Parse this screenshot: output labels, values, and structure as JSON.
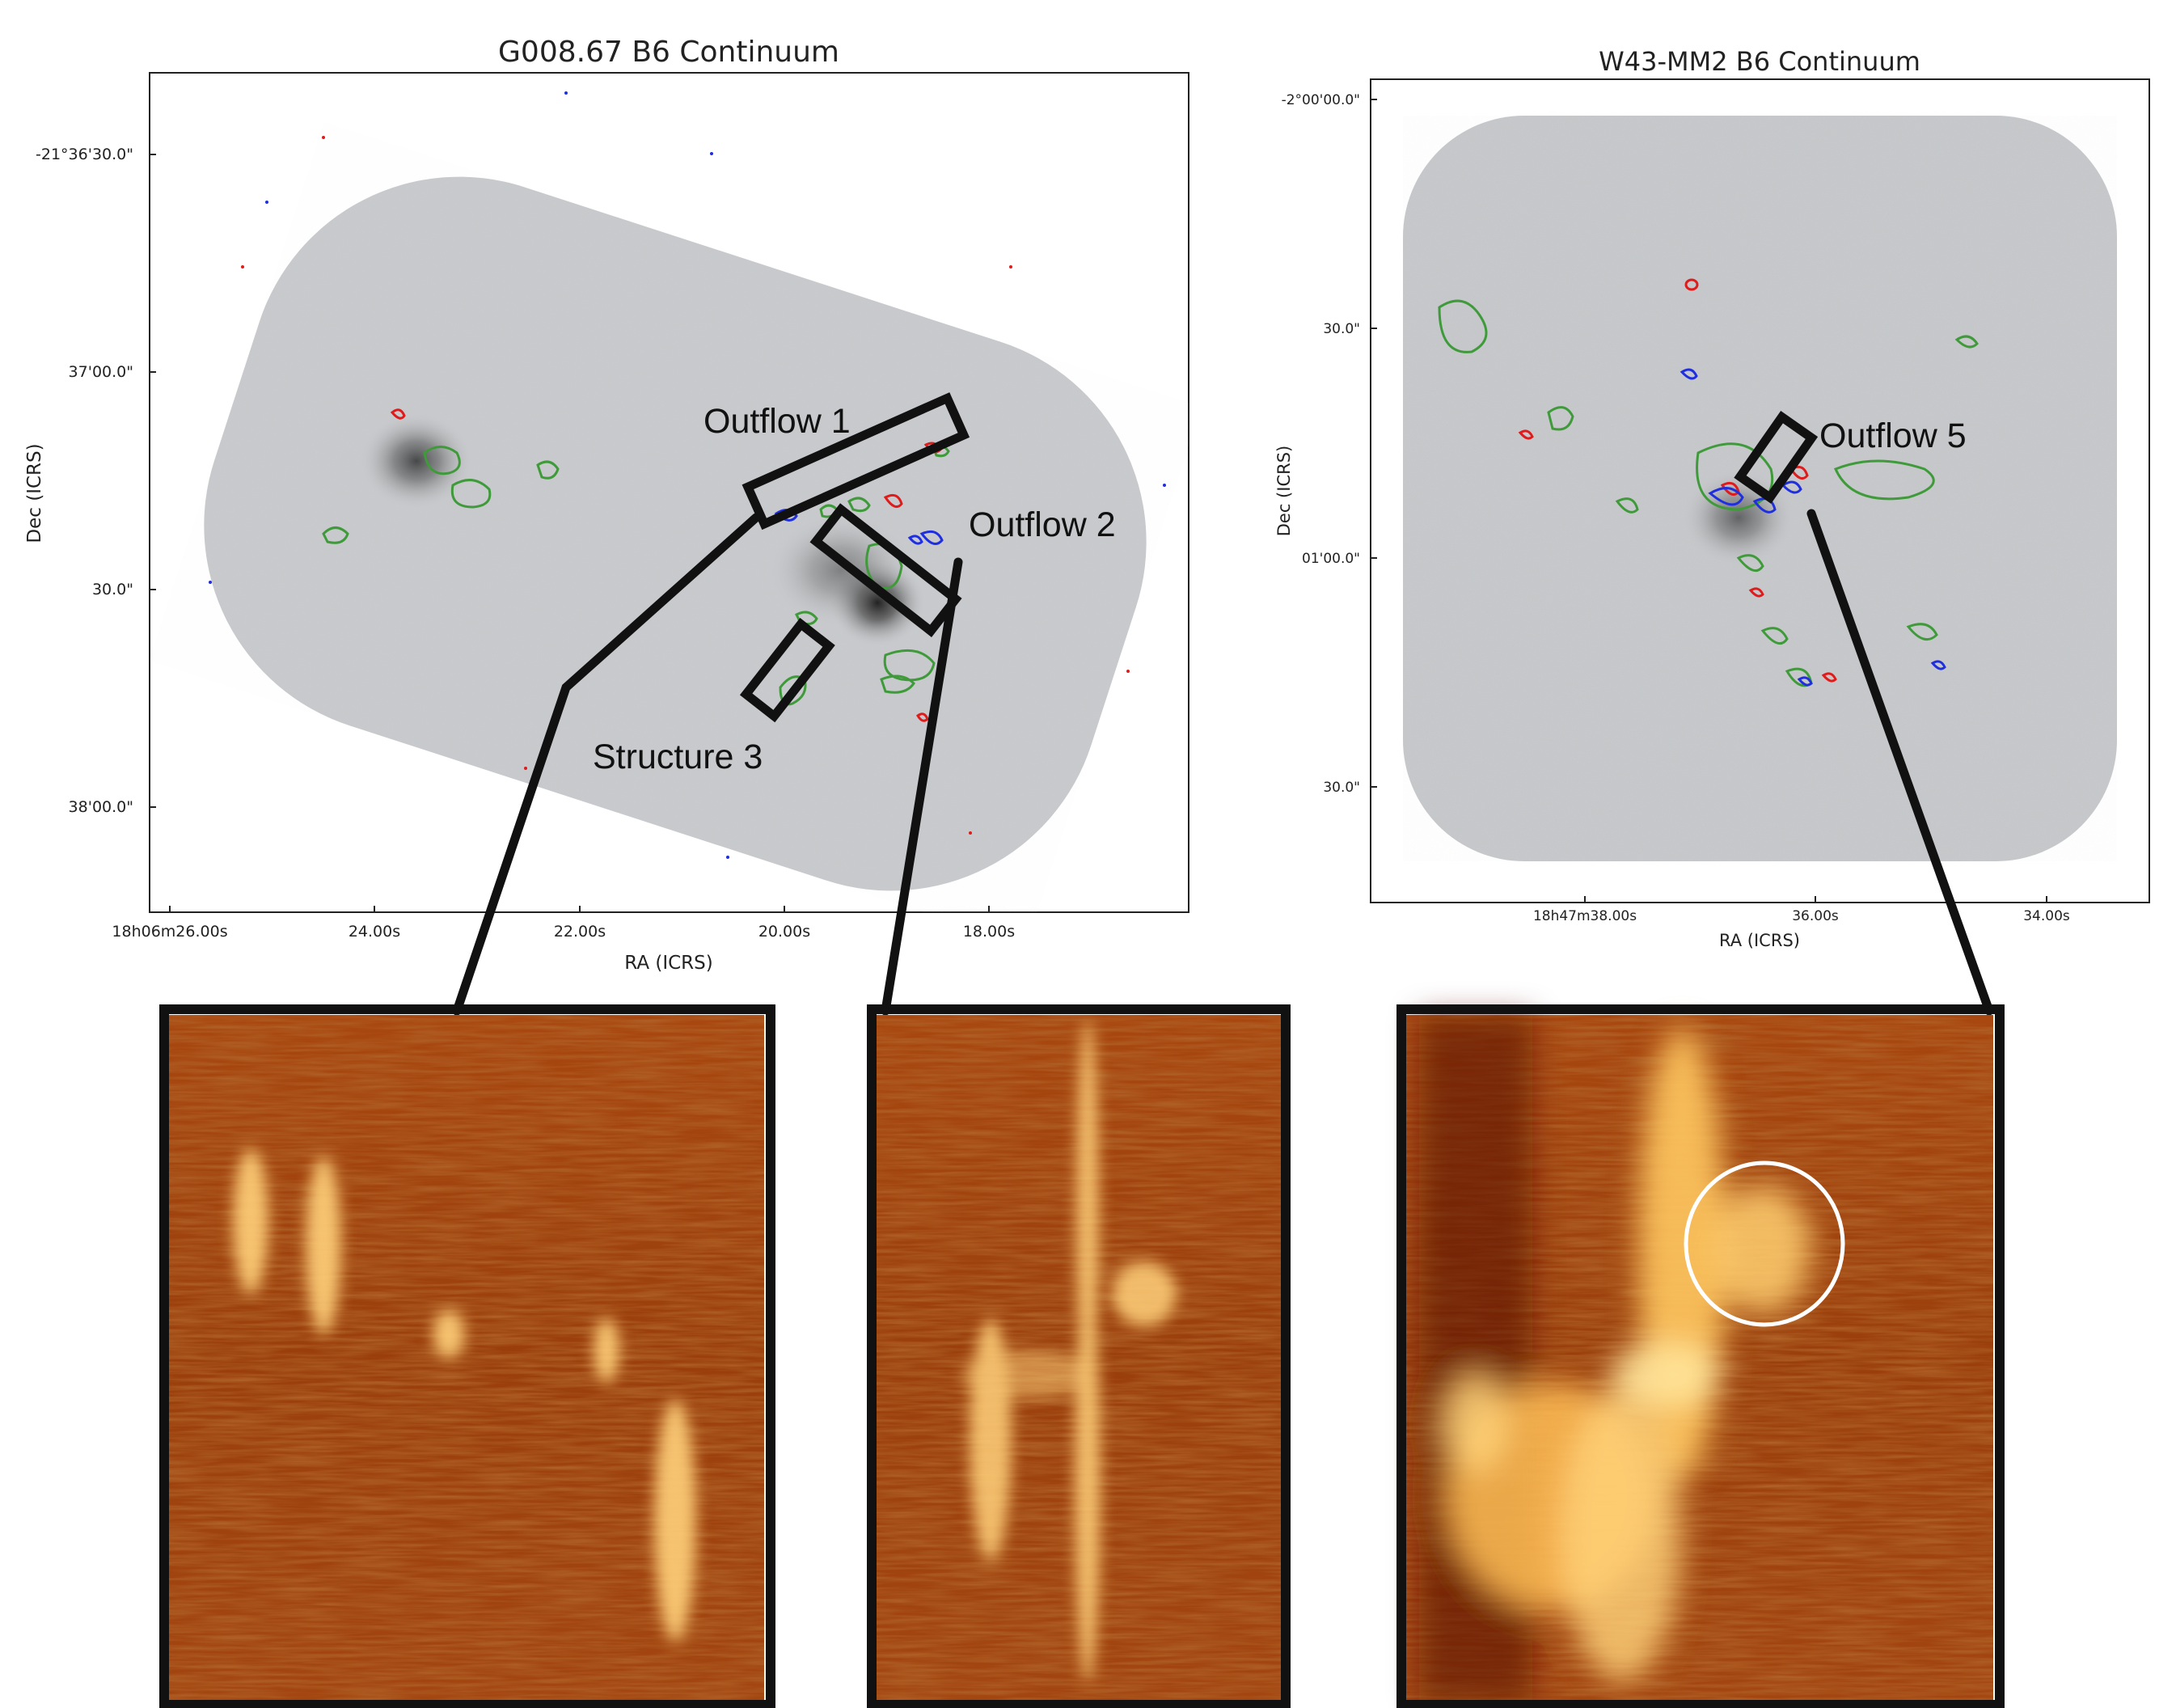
{
  "left_panel": {
    "title": "G008.67 B6 Continuum",
    "xlabel": "RA (ICRS)",
    "ylabel": "Dec (ICRS)",
    "xticks": [
      "18h06m26.00s",
      "24.00s",
      "22.00s",
      "20.00s",
      "18.00s"
    ],
    "yticks": [
      "-21°36'30.0\"",
      "37'00.0\"",
      "30.0\"",
      "38'00.0\""
    ],
    "annotations": [
      "Outflow 1",
      "Outflow 2",
      "Structure 3"
    ]
  },
  "right_panel": {
    "title": "W43-MM2 B6 Continuum",
    "xlabel": "RA (ICRS)",
    "ylabel": "Dec (ICRS)",
    "xticks": [
      "18h47m38.00s",
      "36.00s",
      "34.00s"
    ],
    "yticks": [
      "-2°00'00.0\"",
      "30.0\"",
      "01'00.0\"",
      "30.0\""
    ],
    "annotations": [
      "Outflow 5"
    ]
  },
  "colors": {
    "continuum_gray": "#c6c8cb",
    "contour_green": "#3f9a3a",
    "contour_red": "#e01b1b",
    "contour_blue": "#1f2fe0",
    "pv_dark": "#6e1d06",
    "pv_mid": "#c05a15",
    "pv_bright": "#ffe08a",
    "outline": "#111111",
    "highlight_ellipse": "#ffffff"
  },
  "zoom_panels": [
    {
      "name": "pv-diagram-outflow-1",
      "source": "Outflow 1"
    },
    {
      "name": "pv-diagram-outflow-2",
      "source": "Outflow 2"
    },
    {
      "name": "pv-diagram-outflow-5",
      "source": "Outflow 5"
    }
  ]
}
